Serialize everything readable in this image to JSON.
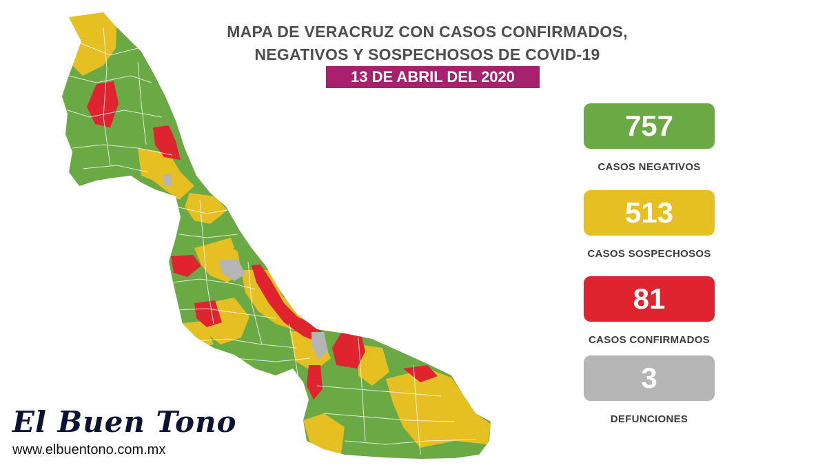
{
  "title": {
    "line1": "MAPA DE VERACRUZ CON CASOS CONFIRMADOS,",
    "line2": "NEGATIVOS Y SOSPECHOSOS DE COVID-19"
  },
  "date": "13 DE ABRIL DEL 2020",
  "stats": [
    {
      "value": "757",
      "label": "CASOS NEGATIVOS",
      "color": "#6aa944"
    },
    {
      "value": "513",
      "label": "CASOS SOSPECHOSOS",
      "color": "#e6bf23"
    },
    {
      "value": "81",
      "label": "CASOS CONFIRMADOS",
      "color": "#df2430"
    },
    {
      "value": "3",
      "label": "DEFUNCIONES",
      "color": "#b5b5b5"
    }
  ],
  "map": {
    "region": "Veracruz",
    "legend_colors": {
      "negativos": "#6aa944",
      "sospechosos": "#e6bf23",
      "confirmados": "#df2430",
      "defunciones": "#b5b5b5"
    }
  },
  "brand": {
    "name": "El Buen Tono",
    "url": "www.elbuentono.com.mx"
  }
}
